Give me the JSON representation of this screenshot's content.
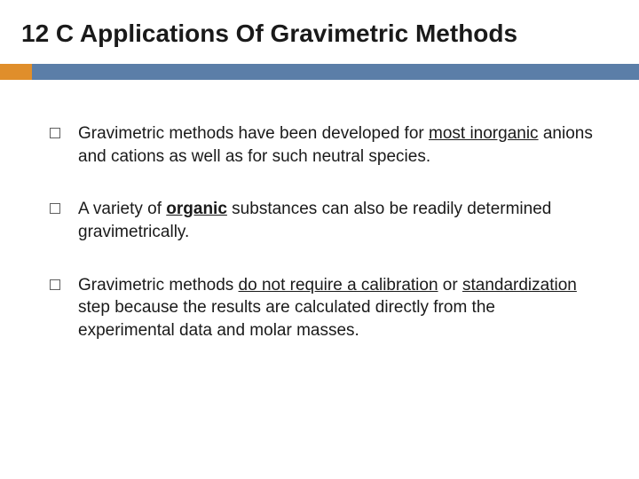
{
  "title": "12 C Applications Of Gravimetric Methods",
  "accent_color": "#e08e2b",
  "bar_color": "#5b7ea8",
  "text_color": "#1a1a1a",
  "background_color": "#ffffff",
  "title_fontsize": 28,
  "body_fontsize": 19,
  "bullets": [
    {
      "pre": "Gravimetric methods have been developed for ",
      "underlined": "most inorganic",
      "post": " anions and cations as well as for such neutral species."
    },
    {
      "pre": "A variety of ",
      "underlined_bold": "organic",
      "post": " substances can also be readily determined gravimetrically."
    },
    {
      "pre": "Gravimetric methods ",
      "underlined": "do not require a calibration",
      "mid": " or ",
      "underlined2": "standardization",
      "post": " step because the results are calculated directly from the experimental data and molar masses."
    }
  ]
}
